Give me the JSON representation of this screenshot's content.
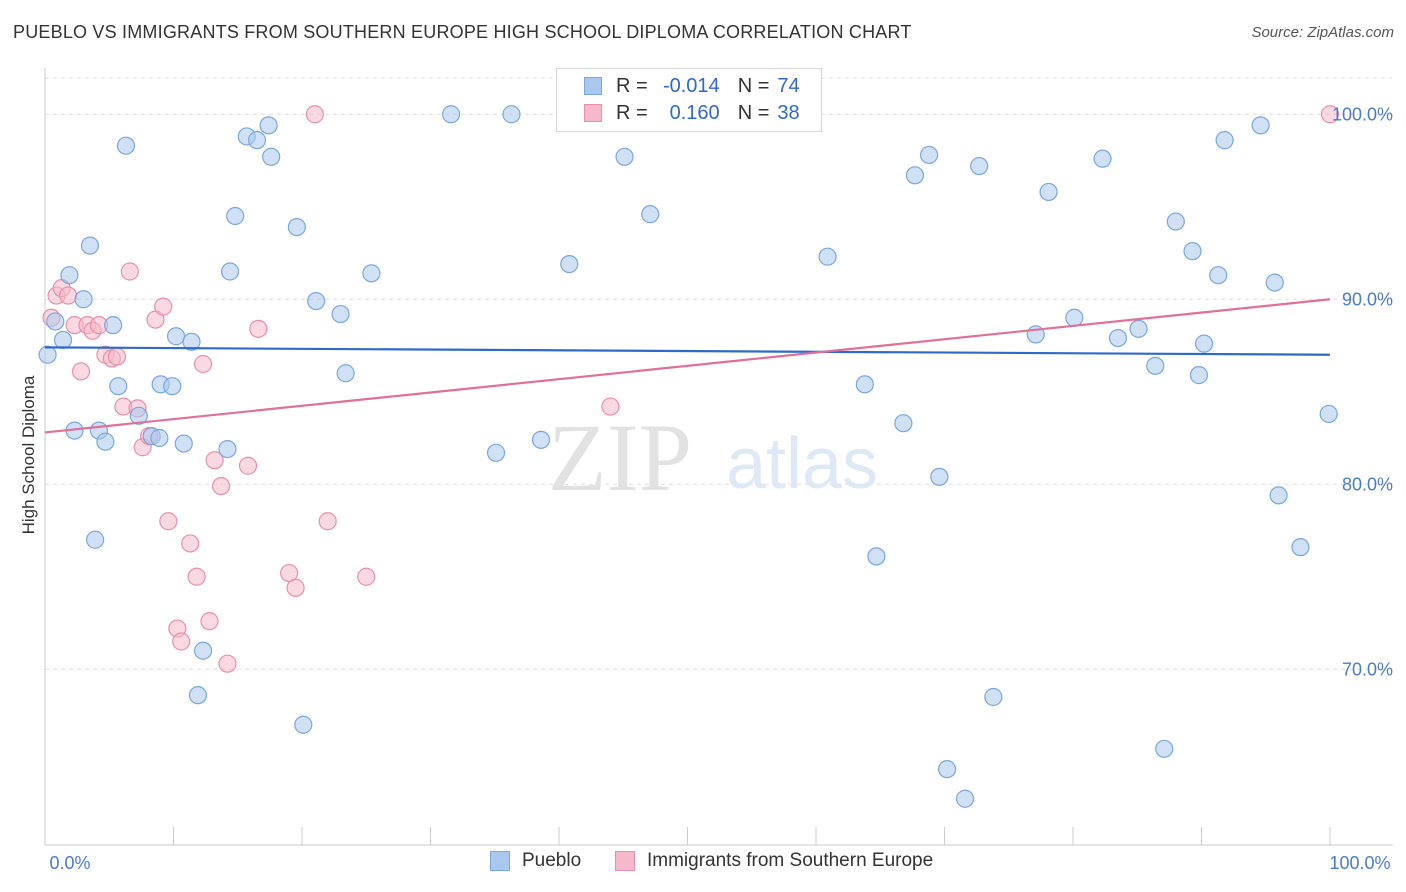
{
  "header": {
    "title": "PUEBLO VS IMMIGRANTS FROM SOUTHERN EUROPE HIGH SCHOOL DIPLOMA CORRELATION CHART",
    "source": "Source: ZipAtlas.com"
  },
  "watermark": {
    "zip": "ZIP",
    "atlas": "atlas"
  },
  "legend": {
    "rows": [
      {
        "r_label": "R =",
        "r_value": "-0.014",
        "n_label": "N =",
        "n_value": "74"
      },
      {
        "r_label": "R =",
        "r_value": "0.160",
        "n_label": "N =",
        "n_value": "38"
      }
    ]
  },
  "bottom_legend": [
    "Pueblo",
    "Immigrants from Southern Europe"
  ],
  "colors": {
    "pueblo_fill": "#aac8ee",
    "pueblo_stroke": "#7aa7dd",
    "pueblo_line": "#2f6ac9",
    "imm_fill": "#f6b9cb",
    "imm_stroke": "#ea8fab",
    "imm_line": "#e0709a",
    "grid": "#dddddd",
    "tick_label": "#4a7cc9"
  },
  "chart_data": {
    "type": "scatter",
    "title": "PUEBLO VS IMMIGRANTS FROM SOUTHERN EUROPE HIGH SCHOOL DIPLOMA CORRELATION CHART",
    "xlabel": "",
    "ylabel": "High School Diploma",
    "xlim": [
      0,
      100
    ],
    "ylim": [
      60.5,
      102.5
    ],
    "x_tick_labels": [
      "0.0%",
      "100.0%"
    ],
    "y_ticks": [
      70,
      80,
      90,
      100
    ],
    "y_tick_labels": [
      "70.0%",
      "80.0%",
      "90.0%",
      "100.0%"
    ],
    "grid": true,
    "legend_position": "top-center",
    "series": [
      {
        "name": "Pueblo",
        "r": -0.014,
        "n": 74,
        "trend": {
          "x": [
            0,
            100
          ],
          "y": [
            87.4,
            87.0
          ]
        },
        "points": [
          [
            0.2,
            87.0
          ],
          [
            0.8,
            88.8
          ],
          [
            1.4,
            87.8
          ],
          [
            1.9,
            91.3
          ],
          [
            2.3,
            82.9
          ],
          [
            3.0,
            90.0
          ],
          [
            3.5,
            92.9
          ],
          [
            3.9,
            77.0
          ],
          [
            4.2,
            82.9
          ],
          [
            4.7,
            82.3
          ],
          [
            5.3,
            88.6
          ],
          [
            5.7,
            85.3
          ],
          [
            6.3,
            98.3
          ],
          [
            7.3,
            83.7
          ],
          [
            8.3,
            82.6
          ],
          [
            8.9,
            82.5
          ],
          [
            9.0,
            85.4
          ],
          [
            9.9,
            85.3
          ],
          [
            10.2,
            88.0
          ],
          [
            10.8,
            82.2
          ],
          [
            11.4,
            87.7
          ],
          [
            11.9,
            68.6
          ],
          [
            12.3,
            71.0
          ],
          [
            14.2,
            81.9
          ],
          [
            14.4,
            91.5
          ],
          [
            14.8,
            94.5
          ],
          [
            15.7,
            98.8
          ],
          [
            16.5,
            98.6
          ],
          [
            17.4,
            99.4
          ],
          [
            17.6,
            97.7
          ],
          [
            19.6,
            93.9
          ],
          [
            20.1,
            67.0
          ],
          [
            21.1,
            89.9
          ],
          [
            23.0,
            89.2
          ],
          [
            23.4,
            86.0
          ],
          [
            25.4,
            91.4
          ],
          [
            31.6,
            100.0
          ],
          [
            35.1,
            81.7
          ],
          [
            36.3,
            100.0
          ],
          [
            38.6,
            82.4
          ],
          [
            40.8,
            91.9
          ],
          [
            42.4,
            100.0
          ],
          [
            45.1,
            97.7
          ],
          [
            47.1,
            94.6
          ],
          [
            60.9,
            92.3
          ],
          [
            63.8,
            85.4
          ],
          [
            64.7,
            76.1
          ],
          [
            66.8,
            83.3
          ],
          [
            67.7,
            96.7
          ],
          [
            68.8,
            97.8
          ],
          [
            69.6,
            80.4
          ],
          [
            70.2,
            64.6
          ],
          [
            71.6,
            63.0
          ],
          [
            72.7,
            97.2
          ],
          [
            73.8,
            68.5
          ],
          [
            77.1,
            88.1
          ],
          [
            78.1,
            95.8
          ],
          [
            80.1,
            89.0
          ],
          [
            82.3,
            97.6
          ],
          [
            83.5,
            87.9
          ],
          [
            85.1,
            88.4
          ],
          [
            86.4,
            86.4
          ],
          [
            87.1,
            65.7
          ],
          [
            88.0,
            94.2
          ],
          [
            89.3,
            92.6
          ],
          [
            89.8,
            85.9
          ],
          [
            90.2,
            87.6
          ],
          [
            91.3,
            91.3
          ],
          [
            91.8,
            98.6
          ],
          [
            94.6,
            99.4
          ],
          [
            95.7,
            90.9
          ],
          [
            96.0,
            79.4
          ],
          [
            97.7,
            76.6
          ],
          [
            99.9,
            83.8
          ]
        ]
      },
      {
        "name": "Immigrants from Southern Europe",
        "r": 0.16,
        "n": 38,
        "trend": {
          "x": [
            0,
            100
          ],
          "y": [
            82.8,
            90.0
          ]
        },
        "points": [
          [
            0.5,
            89.0
          ],
          [
            0.9,
            90.2
          ],
          [
            1.3,
            90.6
          ],
          [
            1.8,
            90.2
          ],
          [
            2.3,
            88.6
          ],
          [
            2.8,
            86.1
          ],
          [
            3.3,
            88.6
          ],
          [
            3.7,
            88.3
          ],
          [
            4.2,
            88.6
          ],
          [
            4.7,
            87.0
          ],
          [
            5.2,
            86.8
          ],
          [
            5.6,
            86.9
          ],
          [
            6.1,
            84.2
          ],
          [
            6.6,
            91.5
          ],
          [
            7.2,
            84.1
          ],
          [
            7.6,
            82.0
          ],
          [
            8.1,
            82.6
          ],
          [
            8.6,
            88.9
          ],
          [
            9.2,
            89.6
          ],
          [
            9.6,
            78.0
          ],
          [
            10.3,
            72.2
          ],
          [
            10.6,
            71.5
          ],
          [
            11.3,
            76.8
          ],
          [
            11.8,
            75.0
          ],
          [
            12.3,
            86.5
          ],
          [
            12.8,
            72.6
          ],
          [
            13.2,
            81.3
          ],
          [
            13.7,
            79.9
          ],
          [
            14.2,
            70.3
          ],
          [
            15.8,
            81.0
          ],
          [
            16.6,
            88.4
          ],
          [
            19.0,
            75.2
          ],
          [
            19.5,
            74.4
          ],
          [
            21.0,
            100.0
          ],
          [
            22.0,
            78.0
          ],
          [
            25.0,
            75.0
          ],
          [
            44.0,
            84.2
          ],
          [
            100.0,
            100.0
          ]
        ]
      }
    ]
  }
}
